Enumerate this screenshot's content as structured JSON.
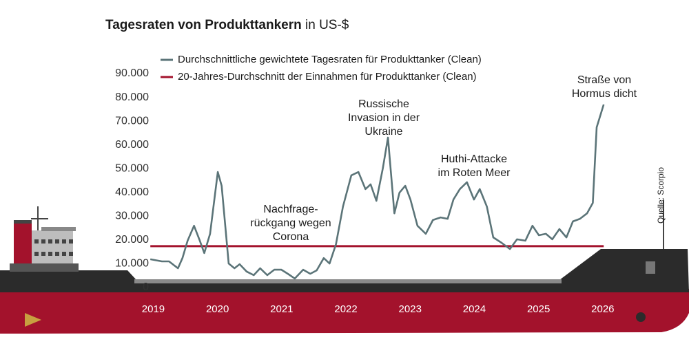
{
  "chart_data": {
    "type": "line",
    "title": "Tagesraten von Produkttankern",
    "unit": "in US-$",
    "source": "Quelle: Scorpio",
    "annotations": [
      [
        "Nachfrage-",
        "rückgang wegen",
        "Corona"
      ],
      [
        "Russische",
        "Invasion in der",
        "Ukraine"
      ],
      [
        "Huthi-Attacke",
        "im Roten Meer"
      ],
      [
        "Straße von",
        "Hormus dicht"
      ]
    ],
    "xlim": [
      2018.95,
      2026.05
    ],
    "xticks": [
      2019,
      2020,
      2021,
      2022,
      2023,
      2024,
      2025,
      2026
    ],
    "ylim": [
      0,
      90000
    ],
    "yticks": [
      0,
      {
        "value": 10000,
        "label": "10.000"
      },
      {
        "value": 20000,
        "label": "20.000"
      },
      {
        "value": 30000,
        "label": "30.000"
      },
      {
        "value": 40000,
        "label": "40.000"
      },
      {
        "value": 50000,
        "label": "50.000"
      },
      {
        "value": 60000,
        "label": "60.000"
      },
      {
        "value": 70000,
        "label": "70.000"
      },
      {
        "value": 80000,
        "label": "80.000"
      },
      {
        "value": 90000,
        "label": "90.000"
      }
    ],
    "grid": false,
    "series": [
      {
        "name": "Durchschnittliche gewichtete Tagesraten für Produkttanker (Clean)",
        "color": "#5b7478",
        "x": [
          2018.96,
          2019.14,
          2019.25,
          2019.39,
          2019.46,
          2019.54,
          2019.64,
          2019.73,
          2019.8,
          2019.89,
          2020.01,
          2020.07,
          2020.18,
          2020.27,
          2020.35,
          2020.46,
          2020.57,
          2020.67,
          2020.78,
          2020.89,
          2021.0,
          2021.1,
          2021.21,
          2021.34,
          2021.45,
          2021.55,
          2021.66,
          2021.75,
          2021.85,
          2021.96,
          2022.09,
          2022.2,
          2022.31,
          2022.39,
          2022.48,
          2022.58,
          2022.66,
          2022.76,
          2022.84,
          2022.93,
          2023.01,
          2023.12,
          2023.25,
          2023.36,
          2023.48,
          2023.59,
          2023.68,
          2023.78,
          2023.89,
          2024.0,
          2024.09,
          2024.2,
          2024.3,
          2024.43,
          2024.56,
          2024.67,
          2024.8,
          2024.91,
          2025.01,
          2025.12,
          2025.22,
          2025.33,
          2025.44,
          2025.54,
          2025.65,
          2025.76,
          2025.85,
          2025.91,
          2026.02
        ],
        "values": [
          11900,
          11000,
          11000,
          8100,
          12400,
          19700,
          26000,
          19700,
          14500,
          22600,
          48600,
          42800,
          10100,
          8100,
          9800,
          6700,
          5200,
          8100,
          5200,
          7500,
          7500,
          5800,
          3800,
          7500,
          5800,
          7200,
          12400,
          10100,
          18200,
          34100,
          47200,
          48600,
          41400,
          43400,
          36500,
          50100,
          63100,
          31200,
          39900,
          42800,
          37000,
          26000,
          22600,
          28400,
          29500,
          28900,
          37000,
          41400,
          44300,
          37000,
          41400,
          34100,
          21100,
          18800,
          16200,
          20300,
          19700,
          26000,
          22000,
          22600,
          20300,
          24600,
          21100,
          27800,
          28900,
          31200,
          35600,
          67400,
          77000
        ]
      },
      {
        "name": "20-Jahres-Durchschnitt der Einnahmen für Produkttanker (Clean)",
        "color": "#a3122c",
        "x": [
          2018.96,
          2026.02
        ],
        "values": [
          17400,
          17400
        ]
      }
    ]
  }
}
